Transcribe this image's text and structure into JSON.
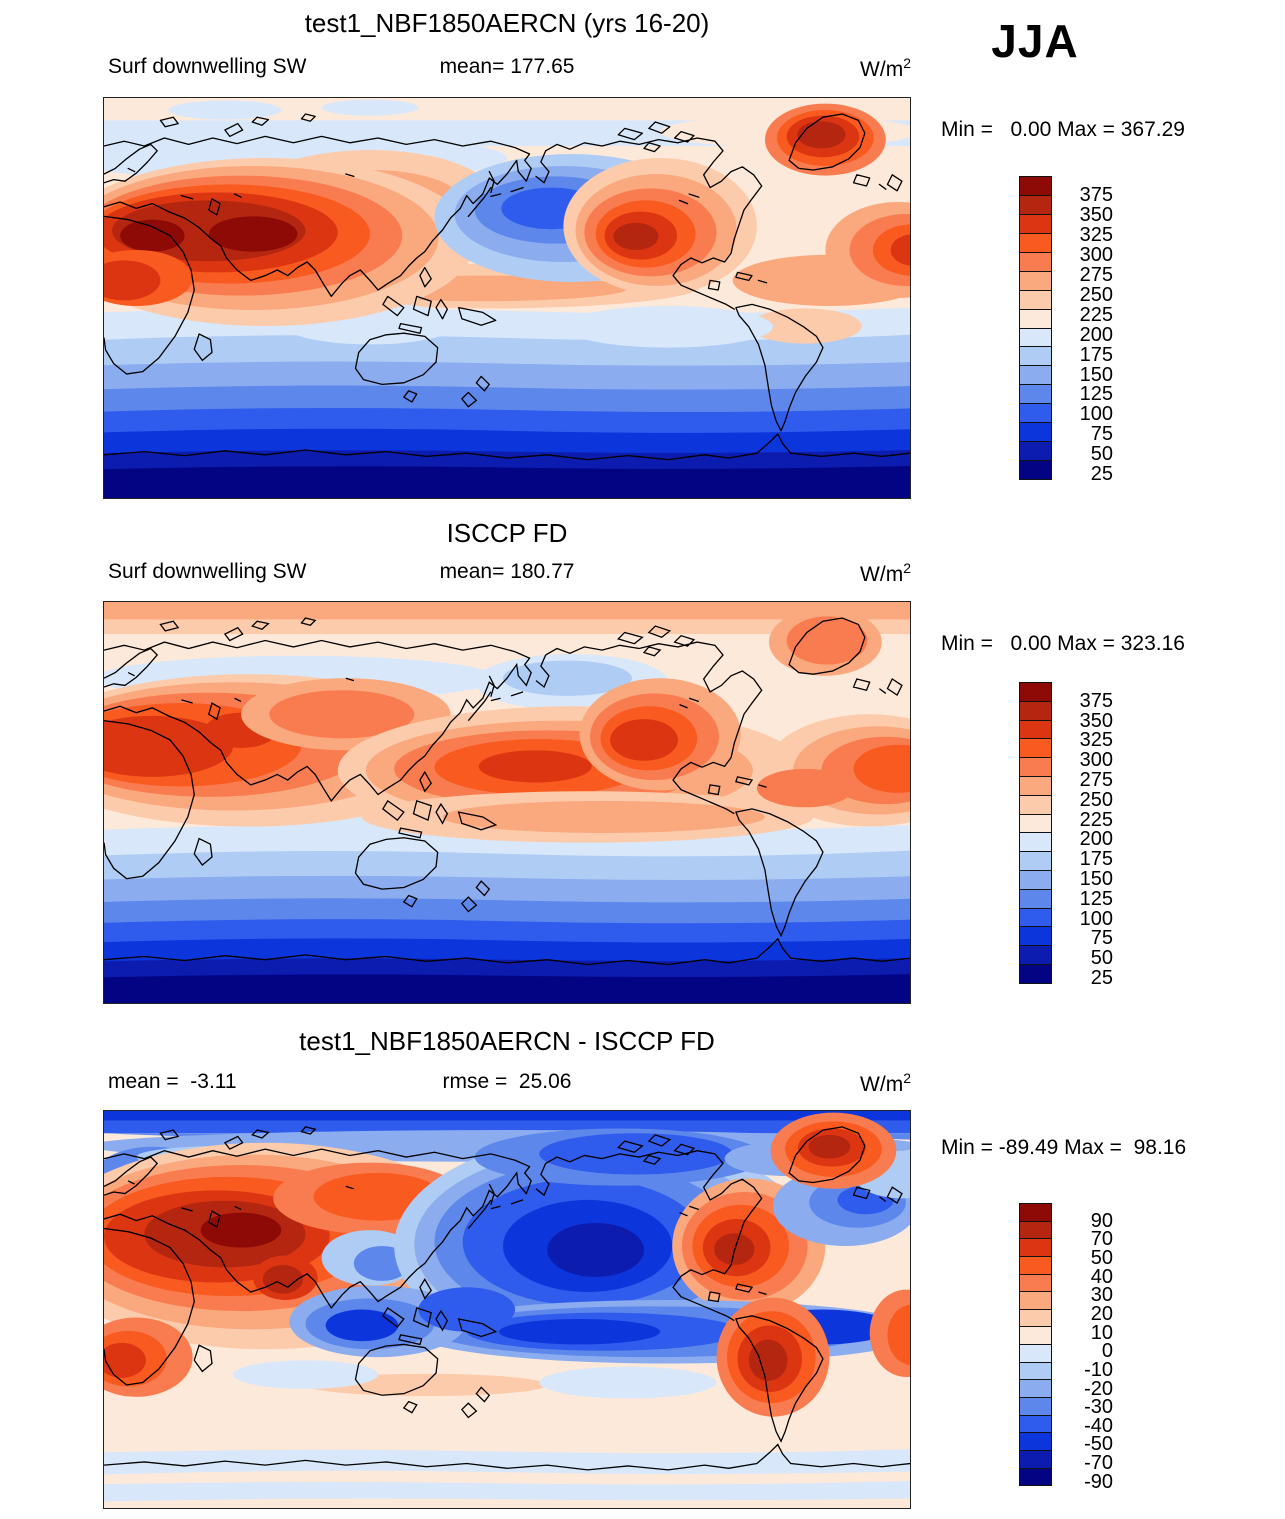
{
  "season": "JJA",
  "palette": [
    "#8D0A06",
    "#B52610",
    "#DC3511",
    "#F95A1F",
    "#F97C50",
    "#FAA87D",
    "#FCCBAB",
    "#FDE9DA",
    "#D8E7FA",
    "#AFCCF4",
    "#8BACEF",
    "#5E87EB",
    "#2F5CEC",
    "#0D35DC",
    "#0C1CAE",
    "#020483"
  ],
  "panels": [
    {
      "title": "test1_NBF1850AERCN (yrs 16-20)",
      "var_label": "Surf downwelling SW",
      "mean_label": "mean= 177.65",
      "units_base": "W/m",
      "units_exp": "2",
      "minmax": "Min =   0.00 Max = 367.29",
      "colorbar_labels": [
        "375",
        "350",
        "325",
        "300",
        "275",
        "250",
        "225",
        "200",
        "175",
        "150",
        "125",
        "100",
        "75",
        "50",
        "25"
      ]
    },
    {
      "title": "ISCCP FD",
      "var_label": "Surf downwelling SW",
      "mean_label": "mean= 180.77",
      "units_base": "W/m",
      "units_exp": "2",
      "minmax": "Min =   0.00 Max = 323.16",
      "colorbar_labels": [
        "375",
        "350",
        "325",
        "300",
        "275",
        "250",
        "225",
        "200",
        "175",
        "150",
        "125",
        "100",
        "75",
        "50",
        "25"
      ]
    },
    {
      "title": "test1_NBF1850AERCN - ISCCP FD",
      "mean_label": "mean =  -3.11",
      "rmse_label": "rmse =  25.06",
      "units_base": "W/m",
      "units_exp": "2",
      "minmax": "Min = -89.49 Max =  98.16",
      "colorbar_labels": [
        "90",
        "70",
        "50",
        "40",
        "30",
        "20",
        "10",
        "0",
        "-10",
        "-20",
        "-30",
        "-40",
        "-50",
        "-70",
        "-90"
      ]
    }
  ],
  "chart_data": {
    "type": "heatmap",
    "subtype": "global filled-contour maps (cylindrical projection, 3-panel model/obs/difference)",
    "season": "JJA",
    "variable": "Surf downwelling SW",
    "units": "W/m2",
    "panels": [
      {
        "name": "test1_NBF1850AERCN (yrs 16-20)",
        "mean": 177.65,
        "min": 0.0,
        "max": 367.29,
        "contour_levels": [
          25,
          50,
          75,
          100,
          125,
          150,
          175,
          200,
          225,
          250,
          275,
          300,
          325,
          350,
          375
        ],
        "pattern": "dark red maxima over N Africa/Middle East/Central Asia and W North America and Greenland; blue minimum over N Pacific; values decrease poleward in S hemisphere to navy over Southern Ocean/Antarctica"
      },
      {
        "name": "ISCCP FD",
        "mean": 180.77,
        "min": 0.0,
        "max": 323.16,
        "contour_levels": [
          25,
          50,
          75,
          100,
          125,
          150,
          175,
          200,
          225,
          250,
          275,
          300,
          325,
          350,
          375
        ],
        "pattern": "smoother observed field: orange maxima over N Africa/Middle East, central tropical Pacific, subtropical Atlantic and W North America; same poleward decrease to navy in the south"
      },
      {
        "name": "test1_NBF1850AERCN - ISCCP FD",
        "mean": -3.11,
        "rmse": 25.06,
        "min": -89.49,
        "max": 98.16,
        "contour_levels": [
          -90,
          -70,
          -50,
          -40,
          -30,
          -20,
          -10,
          0,
          10,
          20,
          30,
          40,
          50,
          70,
          90
        ],
        "pattern": "positive (red) bias over Eurasian land, W North America, Greenland, South America and Africa; negative (blue) bias over Arctic, N Pacific, NW Atlantic, Maritime Continent and ITCZ band; weak pale bias in S hemisphere"
      }
    ],
    "colorbar_direction": "red (high) at top to navy (low) at bottom, 16 discrete classes",
    "legend_position": "right of each map"
  }
}
